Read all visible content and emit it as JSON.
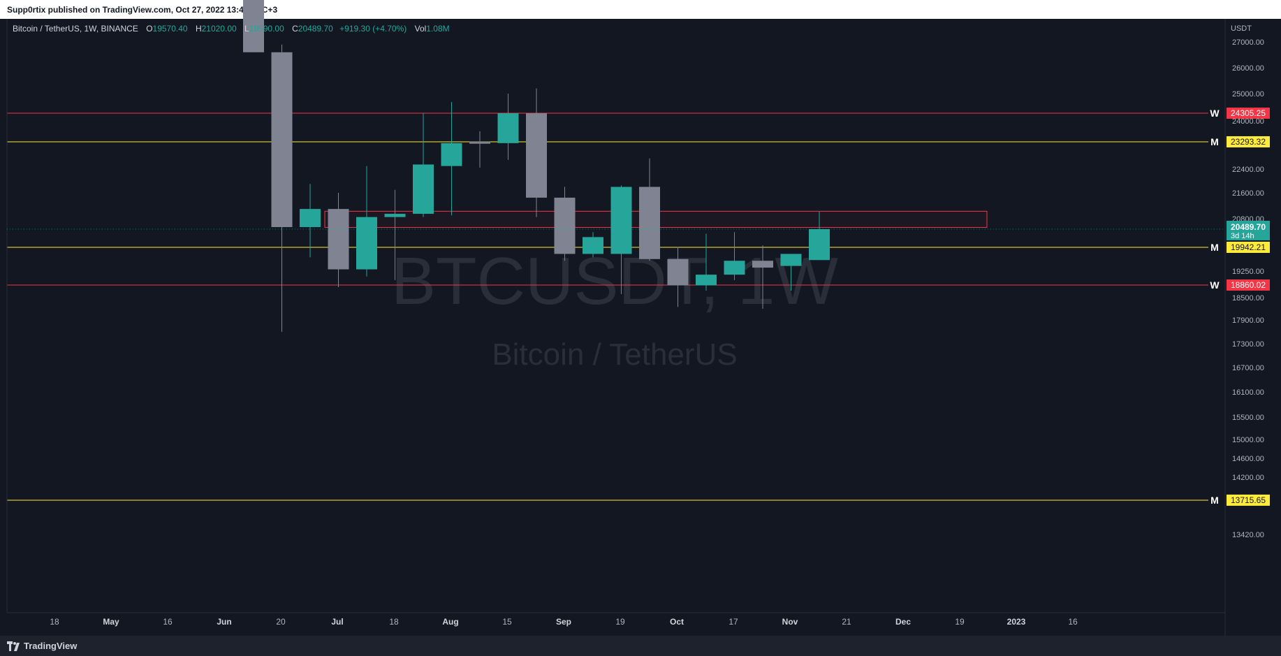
{
  "header": {
    "published_text": "Supp0rtix published on TradingView.com, Oct 27, 2022 13:44 UTC+3"
  },
  "legend": {
    "symbol": "Bitcoin / TetherUS, 1W, BINANCE",
    "o_label": "O",
    "o_value": "19570.40",
    "h_label": "H",
    "h_value": "21020.00",
    "l_label": "L",
    "l_value": "19590.00",
    "c_label": "C",
    "c_value": "20489.70",
    "change": "+919.30 (+4.70%)",
    "vol_label": "Vol",
    "vol_value": "1.08M"
  },
  "watermark": {
    "ticker": "BTCUSDT, 1W",
    "name": "Bitcoin / TetherUS"
  },
  "footer": {
    "brand": "TradingView"
  },
  "colors": {
    "background": "#131722",
    "up": "#26a69a",
    "down": "#808391",
    "support_red": "#f23645",
    "level_yellow": "#ffeb3b",
    "axis_text": "#b2b5be"
  },
  "chart_data": {
    "type": "candlestick",
    "currency_label": "USDT",
    "x_labels": [
      "18",
      "May",
      "16",
      "Jun",
      "20",
      "Jul",
      "18",
      "Aug",
      "15",
      "Sep",
      "19",
      "Oct",
      "17",
      "Nov",
      "21",
      "Dec",
      "19",
      "2023",
      "16"
    ],
    "y_ticks": [
      "27000.00",
      "26000.00",
      "25000.00",
      "24000.00",
      "22400.00",
      "21600.00",
      "20800.00",
      "19250.00",
      "18500.00",
      "17900.00",
      "17300.00",
      "16700.00",
      "16100.00",
      "15500.00",
      "15000.00",
      "14600.00",
      "14200.00",
      "13420.00"
    ],
    "candles": [
      {
        "date": "Jun 6",
        "o": 31000,
        "h": 32000,
        "l": 26600,
        "c": 26600
      },
      {
        "date": "Jun 13",
        "o": 26600,
        "h": 26900,
        "l": 17600,
        "c": 20550
      },
      {
        "date": "Jun 20",
        "o": 20550,
        "h": 21900,
        "l": 19650,
        "c": 21100
      },
      {
        "date": "Jun 27",
        "o": 21100,
        "h": 21600,
        "l": 18800,
        "c": 19300
      },
      {
        "date": "Jul 4",
        "o": 19300,
        "h": 22500,
        "l": 19100,
        "c": 20850
      },
      {
        "date": "Jul 11",
        "o": 20850,
        "h": 21700,
        "l": 19000,
        "c": 20950
      },
      {
        "date": "Jul 18",
        "o": 20950,
        "h": 24300,
        "l": 20850,
        "c": 22550
      },
      {
        "date": "Jul 25",
        "o": 22500,
        "h": 24700,
        "l": 20900,
        "c": 23250
      },
      {
        "date": "Aug 1",
        "o": 23300,
        "h": 23650,
        "l": 22450,
        "c": 23250
      },
      {
        "date": "Aug 8",
        "o": 23250,
        "h": 25000,
        "l": 22700,
        "c": 24300
      },
      {
        "date": "Aug 15",
        "o": 24300,
        "h": 25200,
        "l": 20850,
        "c": 21450
      },
      {
        "date": "Aug 22",
        "o": 21450,
        "h": 21800,
        "l": 19550,
        "c": 19750
      },
      {
        "date": "Aug 29",
        "o": 19750,
        "h": 20400,
        "l": 19650,
        "c": 20250
      },
      {
        "date": "Sep 5",
        "o": 19750,
        "h": 21850,
        "l": 18600,
        "c": 21800
      },
      {
        "date": "Sep 12",
        "o": 21800,
        "h": 22750,
        "l": 19550,
        "c": 19600
      },
      {
        "date": "Sep 19",
        "o": 19600,
        "h": 19950,
        "l": 18250,
        "c": 18850
      },
      {
        "date": "Sep 26",
        "o": 18850,
        "h": 20350,
        "l": 18700,
        "c": 19150
      },
      {
        "date": "Oct 3",
        "o": 19150,
        "h": 20400,
        "l": 19000,
        "c": 19550
      },
      {
        "date": "Oct 10",
        "o": 19550,
        "h": 20000,
        "l": 18200,
        "c": 19350
      },
      {
        "date": "Oct 17",
        "o": 19400,
        "h": 19700,
        "l": 18700,
        "c": 19750
      },
      {
        "date": "Oct 24",
        "o": 19570.4,
        "h": 21020,
        "l": 19590,
        "c": 20489.7
      }
    ],
    "levels": [
      {
        "label": "W",
        "value": "24305.25",
        "kind": "red"
      },
      {
        "label": "M",
        "value": "23293.32",
        "kind": "yellow"
      },
      {
        "label": "M",
        "value": "19942.21",
        "kind": "yellow"
      },
      {
        "label": "W",
        "value": "18860.02",
        "kind": "red"
      },
      {
        "label": "M",
        "value": "13715.65",
        "kind": "yellow"
      }
    ],
    "zone": {
      "top": 21030,
      "bottom": 20540
    },
    "current_price": {
      "value": "20489.70",
      "countdown": "3d 14h"
    }
  }
}
